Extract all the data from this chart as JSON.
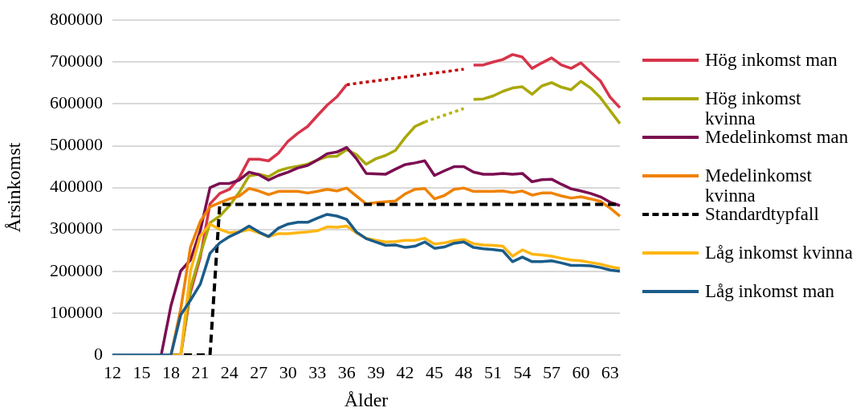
{
  "chart_data": {
    "type": "line",
    "xlabel": "Ålder",
    "ylabel": "Årsinkomst",
    "categories": [
      "12",
      null,
      null,
      "15",
      null,
      null,
      "18",
      null,
      null,
      "21",
      null,
      null,
      "24",
      null,
      null,
      "27",
      null,
      null,
      "30",
      null,
      null,
      "33",
      null,
      null,
      "36",
      null,
      null,
      "39",
      null,
      null,
      "42",
      null,
      null,
      "45",
      null,
      null,
      "48",
      null,
      null,
      "51",
      null,
      null,
      "54",
      null,
      null,
      "57",
      null,
      null,
      "60",
      null,
      null,
      "63",
      null
    ],
    "ylim": [
      0,
      800000
    ],
    "yticks": [
      0,
      100000,
      200000,
      300000,
      400000,
      500000,
      600000,
      700000,
      800000
    ],
    "grid": "y",
    "legend": "right",
    "marker": "none",
    "series": [
      {
        "name": "Hög inkomst man",
        "color": "#d7344a",
        "values": [
          null,
          null,
          null,
          null,
          null,
          null,
          0,
          0,
          150000,
          233000,
          361000,
          386000,
          396000,
          424000,
          468000,
          468000,
          464000,
          482000,
          511000,
          530000,
          546000,
          572000,
          597000,
          617000,
          646000,
          null,
          null,
          null,
          null,
          null,
          null,
          null,
          null,
          null,
          null,
          null,
          null,
          693000,
          693000,
          700000,
          706000,
          718000,
          712000,
          685000,
          698000,
          710000,
          693000,
          685000,
          698000,
          676000,
          655000,
          616000,
          591000
        ]
      },
      {
        "name": "Hög inkomst kvinna",
        "color": "#a9a80a",
        "values": [
          null,
          null,
          null,
          null,
          null,
          null,
          0,
          0,
          160000,
          240000,
          316000,
          332000,
          357000,
          389000,
          428000,
          432000,
          426000,
          440000,
          447000,
          451000,
          456000,
          466000,
          474000,
          475000,
          491000,
          479000,
          456000,
          469000,
          477000,
          489000,
          520000,
          546000,
          557000,
          null,
          null,
          null,
          null,
          611000,
          612000,
          619000,
          630000,
          638000,
          641000,
          623000,
          643000,
          651000,
          640000,
          634000,
          654000,
          638000,
          615000,
          584000,
          553000
        ]
      },
      {
        "name": "Medelinkomst man",
        "color": "#7b0e52",
        "values": [
          null,
          null,
          null,
          null,
          null,
          0,
          118000,
          201000,
          227000,
          297000,
          400000,
          410000,
          410000,
          418000,
          437000,
          431000,
          418000,
          429000,
          437000,
          447000,
          453000,
          466000,
          481000,
          485000,
          496000,
          469000,
          434000,
          433000,
          432000,
          444000,
          455000,
          459000,
          464000,
          429000,
          440000,
          450000,
          450000,
          437000,
          432000,
          432000,
          434000,
          432000,
          434000,
          414000,
          419000,
          420000,
          408000,
          397000,
          392000,
          386000,
          378000,
          365000,
          357000
        ]
      },
      {
        "name": "Medelinkomst kvinna",
        "color": "#ef8200",
        "values": [
          null,
          null,
          null,
          null,
          null,
          null,
          0,
          110000,
          258000,
          319000,
          354000,
          364000,
          373000,
          380000,
          398000,
          392000,
          383000,
          391000,
          391000,
          391000,
          387000,
          391000,
          396000,
          392000,
          399000,
          380000,
          361000,
          364000,
          366000,
          368000,
          385000,
          396000,
          398000,
          373000,
          381000,
          396000,
          399000,
          391000,
          391000,
          391000,
          392000,
          388000,
          392000,
          382000,
          387000,
          387000,
          380000,
          375000,
          378000,
          373000,
          367000,
          351000,
          332000
        ]
      },
      {
        "name": "Standardtypfall",
        "color": "#000000",
        "line_style": "dashed",
        "values": [
          null,
          null,
          null,
          null,
          null,
          null,
          0,
          0,
          0,
          0,
          0,
          360000,
          360000,
          360000,
          360000,
          360000,
          360000,
          360000,
          360000,
          360000,
          360000,
          360000,
          360000,
          360000,
          360000,
          360000,
          360000,
          360000,
          360000,
          360000,
          360000,
          360000,
          360000,
          360000,
          360000,
          360000,
          360000,
          360000,
          360000,
          360000,
          360000,
          360000,
          360000,
          360000,
          360000,
          360000,
          360000,
          360000,
          360000,
          360000,
          360000,
          360000,
          360000
        ]
      },
      {
        "name": "Låg inkomst kvinna",
        "color": "#ffb612",
        "values": [
          null,
          null,
          null,
          null,
          null,
          null,
          0,
          0,
          201000,
          284000,
          313000,
          300000,
          292000,
          294000,
          300000,
          292000,
          283000,
          290000,
          290000,
          292000,
          294000,
          297000,
          306000,
          305000,
          308000,
          292000,
          279000,
          274000,
          270000,
          271000,
          274000,
          274000,
          279000,
          265000,
          268000,
          273000,
          276000,
          266000,
          263000,
          262000,
          260000,
          236000,
          251000,
          241000,
          239000,
          236000,
          231000,
          227000,
          225000,
          221000,
          217000,
          211000,
          207000
        ]
      },
      {
        "name": "Låg inkomst man",
        "color": "#1b5c8a",
        "values": [
          0,
          0,
          0,
          0,
          0,
          0,
          0,
          96000,
          131000,
          169000,
          243000,
          268000,
          283000,
          294000,
          308000,
          294000,
          283000,
          303000,
          313000,
          317000,
          317000,
          327000,
          336000,
          332000,
          324000,
          294000,
          278000,
          270000,
          262000,
          263000,
          257000,
          260000,
          270000,
          255000,
          258000,
          267000,
          270000,
          257000,
          254000,
          252000,
          249000,
          223000,
          234000,
          223000,
          223000,
          225000,
          220000,
          214000,
          214000,
          213000,
          209000,
          203000,
          200000
        ]
      },
      {
        "color": "#c00000",
        "line_style": "dotted",
        "values": [
          null,
          null,
          null,
          null,
          null,
          null,
          null,
          null,
          null,
          null,
          null,
          null,
          null,
          null,
          null,
          null,
          null,
          null,
          null,
          null,
          null,
          null,
          null,
          null,
          646000,
          null,
          null,
          null,
          null,
          null,
          null,
          null,
          null,
          null,
          null,
          null,
          683000,
          null,
          null,
          null,
          null,
          null,
          null,
          null,
          null,
          null,
          null,
          null,
          null,
          null,
          null,
          null,
          null
        ]
      },
      {
        "color": "#b8b400",
        "line_style": "dotted",
        "values": [
          null,
          null,
          null,
          null,
          null,
          null,
          null,
          null,
          null,
          null,
          null,
          null,
          null,
          null,
          null,
          null,
          null,
          null,
          null,
          null,
          null,
          null,
          null,
          null,
          null,
          null,
          null,
          null,
          null,
          null,
          null,
          null,
          557000,
          null,
          null,
          null,
          589000,
          null,
          null,
          null,
          null,
          null,
          null,
          null,
          null,
          null,
          null,
          null,
          null,
          null,
          null,
          null,
          null
        ]
      }
    ]
  }
}
